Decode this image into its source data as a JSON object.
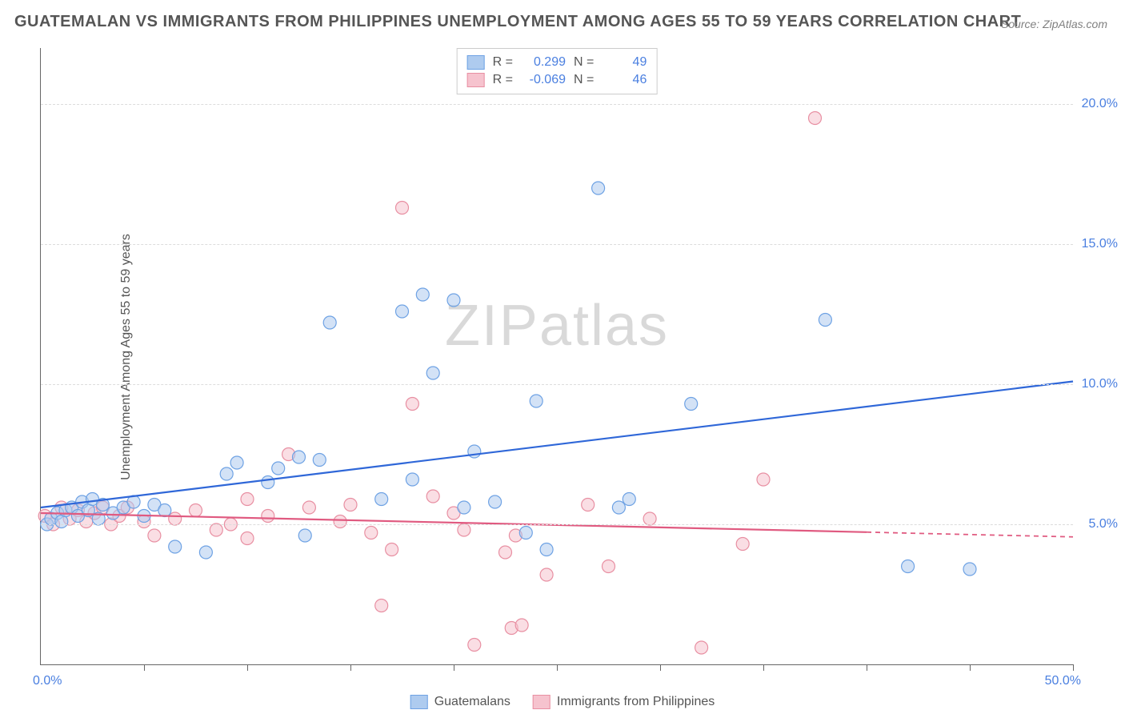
{
  "title": "GUATEMALAN VS IMMIGRANTS FROM PHILIPPINES UNEMPLOYMENT AMONG AGES 55 TO 59 YEARS CORRELATION CHART",
  "source": "Source: ZipAtlas.com",
  "ylabel": "Unemployment Among Ages 55 to 59 years",
  "watermark": {
    "bold": "ZIP",
    "light": "atlas"
  },
  "chart": {
    "type": "scatter",
    "background_color": "#ffffff",
    "grid_color": "#dcdcdc",
    "axis_color": "#666666",
    "xlim": [
      0,
      50
    ],
    "ylim": [
      0,
      22
    ],
    "y_ticks": [
      5,
      10,
      15,
      20
    ],
    "y_tick_labels": [
      "5.0%",
      "10.0%",
      "15.0%",
      "20.0%"
    ],
    "x_tick_positions": [
      5,
      10,
      15,
      20,
      25,
      30,
      35,
      40,
      45,
      50
    ],
    "x_origin_label": "0.0%",
    "x_max_label": "50.0%",
    "marker_radius": 8,
    "marker_opacity": 0.55,
    "line_width": 2.2,
    "series": [
      {
        "name": "Guatemalans",
        "fill": "#aecbef",
        "stroke": "#6ea2e4",
        "line_color": "#2f67d8",
        "R": "0.299",
        "N": "49",
        "trend": {
          "x1": 0,
          "y1": 5.6,
          "x2": 50,
          "y2": 10.1,
          "solid_until_x": 50
        },
        "points": [
          [
            0.3,
            5.0
          ],
          [
            0.5,
            5.2
          ],
          [
            0.8,
            5.4
          ],
          [
            1.0,
            5.1
          ],
          [
            1.2,
            5.5
          ],
          [
            1.5,
            5.6
          ],
          [
            1.8,
            5.3
          ],
          [
            2.0,
            5.8
          ],
          [
            2.3,
            5.5
          ],
          [
            2.5,
            5.9
          ],
          [
            2.8,
            5.2
          ],
          [
            3.0,
            5.7
          ],
          [
            3.5,
            5.4
          ],
          [
            4.0,
            5.6
          ],
          [
            4.5,
            5.8
          ],
          [
            5.0,
            5.3
          ],
          [
            5.5,
            5.7
          ],
          [
            6.0,
            5.5
          ],
          [
            6.5,
            4.2
          ],
          [
            8.0,
            4.0
          ],
          [
            9.0,
            6.8
          ],
          [
            9.5,
            7.2
          ],
          [
            11.0,
            6.5
          ],
          [
            11.5,
            7.0
          ],
          [
            12.5,
            7.4
          ],
          [
            12.8,
            4.6
          ],
          [
            13.5,
            7.3
          ],
          [
            14.0,
            12.2
          ],
          [
            16.5,
            5.9
          ],
          [
            17.5,
            12.6
          ],
          [
            18.0,
            6.6
          ],
          [
            18.5,
            13.2
          ],
          [
            19.0,
            10.4
          ],
          [
            20.0,
            13.0
          ],
          [
            20.5,
            5.6
          ],
          [
            21.0,
            7.6
          ],
          [
            22.0,
            5.8
          ],
          [
            23.5,
            4.7
          ],
          [
            24.0,
            9.4
          ],
          [
            24.5,
            4.1
          ],
          [
            27.0,
            17.0
          ],
          [
            28.0,
            5.6
          ],
          [
            28.5,
            5.9
          ],
          [
            31.5,
            9.3
          ],
          [
            38.0,
            12.3
          ],
          [
            42.0,
            3.5
          ],
          [
            45.0,
            3.4
          ]
        ]
      },
      {
        "name": "Immigrants from Philippines",
        "fill": "#f6c3ce",
        "stroke": "#e88fa2",
        "line_color": "#e05a80",
        "R": "-0.069",
        "N": "46",
        "trend": {
          "x1": 0,
          "y1": 5.4,
          "x2": 50,
          "y2": 4.55,
          "solid_until_x": 40
        },
        "points": [
          [
            0.2,
            5.3
          ],
          [
            0.6,
            5.0
          ],
          [
            1.0,
            5.6
          ],
          [
            1.4,
            5.2
          ],
          [
            1.8,
            5.5
          ],
          [
            2.2,
            5.1
          ],
          [
            2.6,
            5.4
          ],
          [
            3.0,
            5.6
          ],
          [
            3.4,
            5.0
          ],
          [
            3.8,
            5.3
          ],
          [
            4.2,
            5.6
          ],
          [
            5.0,
            5.1
          ],
          [
            5.5,
            4.6
          ],
          [
            6.5,
            5.2
          ],
          [
            7.5,
            5.5
          ],
          [
            8.5,
            4.8
          ],
          [
            9.2,
            5.0
          ],
          [
            10.0,
            5.9
          ],
          [
            10.0,
            4.5
          ],
          [
            11.0,
            5.3
          ],
          [
            12.0,
            7.5
          ],
          [
            13.0,
            5.6
          ],
          [
            14.5,
            5.1
          ],
          [
            15.0,
            5.7
          ],
          [
            16.0,
            4.7
          ],
          [
            16.5,
            2.1
          ],
          [
            17.0,
            4.1
          ],
          [
            17.5,
            16.3
          ],
          [
            18.0,
            9.3
          ],
          [
            19.0,
            6.0
          ],
          [
            20.0,
            5.4
          ],
          [
            20.5,
            4.8
          ],
          [
            21.0,
            0.7
          ],
          [
            22.5,
            4.0
          ],
          [
            22.8,
            1.3
          ],
          [
            23.0,
            4.6
          ],
          [
            23.3,
            1.4
          ],
          [
            24.5,
            3.2
          ],
          [
            26.5,
            5.7
          ],
          [
            27.5,
            3.5
          ],
          [
            29.5,
            5.2
          ],
          [
            32.0,
            0.6
          ],
          [
            34.0,
            4.3
          ],
          [
            35.0,
            6.6
          ],
          [
            37.5,
            19.5
          ]
        ]
      }
    ],
    "stat_legend_labels": {
      "R": "R =",
      "N": "N ="
    },
    "bottom_legend_labels": [
      "Guatemalans",
      "Immigrants from Philippines"
    ]
  }
}
